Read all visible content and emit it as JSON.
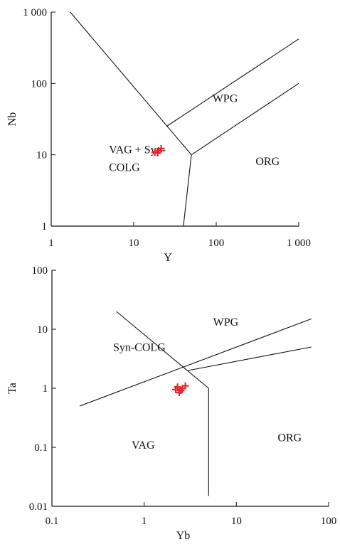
{
  "colors": {
    "ink": "#111111",
    "points": "#e8232a"
  },
  "chart_data": [
    {
      "type": "scatter",
      "xlabel": "Y",
      "ylabel": "Nb",
      "xscale": "log",
      "yscale": "log",
      "xlim": [
        1,
        1000
      ],
      "ylim": [
        1,
        1000
      ],
      "xticks": [
        {
          "value": 1,
          "label": "1"
        },
        {
          "value": 10,
          "label": "10"
        },
        {
          "value": 100,
          "label": "100"
        },
        {
          "value": 1000,
          "label": "1 000"
        }
      ],
      "yticks": [
        {
          "value": 1,
          "label": "1"
        },
        {
          "value": 10,
          "label": "10"
        },
        {
          "value": 100,
          "label": "100"
        },
        {
          "value": 1000,
          "label": "1 000"
        }
      ],
      "grid": false,
      "boundaries": [
        [
          [
            1.7,
            1000
          ],
          [
            50,
            10
          ]
        ],
        [
          [
            25,
            25
          ],
          [
            1000,
            420
          ]
        ],
        [
          [
            50,
            10
          ],
          [
            1000,
            100
          ]
        ],
        [
          [
            50,
            10
          ],
          [
            40,
            1
          ]
        ]
      ],
      "fields": [
        {
          "lines": [
            "WPG"
          ],
          "x": 90,
          "y": 55
        },
        {
          "lines": [
            "VAG + Syn-",
            "COLG"
          ],
          "x": 5,
          "y": 10.5
        },
        {
          "lines": [
            "ORG"
          ],
          "x": 300,
          "y": 7.2
        }
      ],
      "points": [
        {
          "x": 18,
          "y": 10.8
        },
        {
          "x": 20,
          "y": 11.5
        },
        {
          "x": 21.5,
          "y": 12.2
        },
        {
          "x": 19.5,
          "y": 10.6
        }
      ]
    },
    {
      "type": "scatter",
      "xlabel": "Yb",
      "ylabel": "Ta",
      "xscale": "log",
      "yscale": "log",
      "xlim": [
        0.1,
        100
      ],
      "ylim": [
        0.01,
        100
      ],
      "xticks": [
        {
          "value": 0.1,
          "label": "0.1"
        },
        {
          "value": 1,
          "label": "1"
        },
        {
          "value": 10,
          "label": "10"
        },
        {
          "value": 100,
          "label": "100"
        }
      ],
      "yticks": [
        {
          "value": 0.01,
          "label": "0.01"
        },
        {
          "value": 0.1,
          "label": "0.1"
        },
        {
          "value": 1,
          "label": "1"
        },
        {
          "value": 10,
          "label": "10"
        },
        {
          "value": 100,
          "label": "100"
        }
      ],
      "grid": false,
      "boundaries": [
        [
          [
            0.2,
            0.5
          ],
          [
            65,
            15
          ]
        ],
        [
          [
            0.5,
            20
          ],
          [
            5,
            1
          ]
        ],
        [
          [
            3,
            2
          ],
          [
            65,
            5
          ]
        ],
        [
          [
            5,
            1
          ],
          [
            5,
            0.015
          ]
        ]
      ],
      "fields": [
        {
          "lines": [
            "WPG"
          ],
          "x": 5.6,
          "y": 11.5
        },
        {
          "lines": [
            "Syn-COLG"
          ],
          "x": 0.46,
          "y": 4.3
        },
        {
          "lines": [
            "VAG"
          ],
          "x": 0.73,
          "y": 0.095
        },
        {
          "lines": [
            "ORG"
          ],
          "x": 28,
          "y": 0.127
        }
      ],
      "points": [
        {
          "x": 2.2,
          "y": 0.95
        },
        {
          "x": 2.4,
          "y": 0.85
        },
        {
          "x": 2.3,
          "y": 1.05
        },
        {
          "x": 2.6,
          "y": 1.0
        },
        {
          "x": 2.5,
          "y": 0.92
        },
        {
          "x": 2.8,
          "y": 1.1
        }
      ]
    }
  ]
}
